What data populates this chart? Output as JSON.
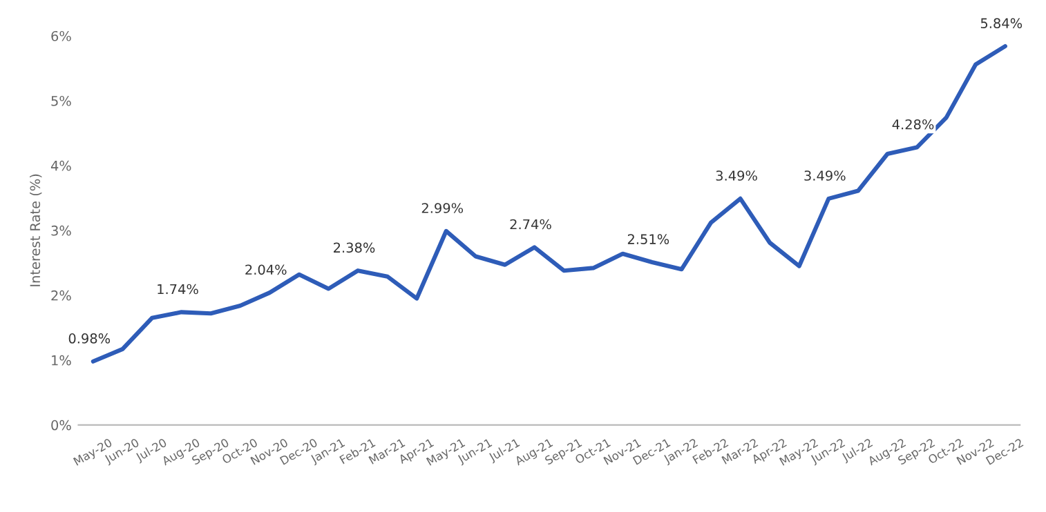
{
  "chart_data": {
    "type": "line",
    "ylabel": "Interest Rate (%)",
    "categories": [
      "May-20",
      "Jun-20",
      "Jul-20",
      "Aug-20",
      "Sep-20",
      "Oct-20",
      "Nov-20",
      "Dec-20",
      "Jan-21",
      "Feb-21",
      "Mar-21",
      "Apr-21",
      "May-21",
      "Jun-21",
      "Jul-21",
      "Aug-21",
      "Sep-21",
      "Oct-21",
      "Nov-21",
      "Dec-21",
      "Jan-22",
      "Feb-22",
      "Mar-22",
      "Apr-22",
      "May-22",
      "Jun-22",
      "Jul-22",
      "Aug-22",
      "Sep-22",
      "Oct-22",
      "Nov-22",
      "Dec-22"
    ],
    "series": [
      {
        "color": "#2e5cb8",
        "values": [
          0.98,
          1.17,
          1.65,
          1.74,
          1.72,
          1.84,
          2.04,
          2.32,
          2.1,
          2.38,
          2.29,
          1.95,
          2.99,
          2.6,
          2.47,
          2.74,
          2.38,
          2.42,
          2.64,
          2.51,
          2.4,
          3.12,
          3.49,
          2.81,
          2.45,
          3.49,
          3.61,
          4.18,
          4.28,
          4.74,
          5.56,
          5.84
        ],
        "value_labels": [
          "0.98%",
          null,
          null,
          "1.74%",
          null,
          null,
          "2.04%",
          null,
          null,
          "2.38%",
          null,
          null,
          "2.99%",
          null,
          null,
          "2.74%",
          null,
          null,
          null,
          "2.51%",
          null,
          null,
          "3.49%",
          null,
          null,
          "3.49%",
          null,
          null,
          "4.28%",
          null,
          null,
          "5.84%"
        ]
      }
    ],
    "ylim": [
      0,
      6
    ],
    "yticks": [
      {
        "value": 0,
        "label": "0%"
      },
      {
        "value": 1,
        "label": "1%"
      },
      {
        "value": 2,
        "label": "2%"
      },
      {
        "value": 3,
        "label": "3%"
      },
      {
        "value": 4,
        "label": "4%"
      },
      {
        "value": 5,
        "label": "5%"
      },
      {
        "value": 6,
        "label": "6%"
      }
    ],
    "grid": false,
    "legend": false,
    "marker": "none",
    "line_style": "solid"
  }
}
